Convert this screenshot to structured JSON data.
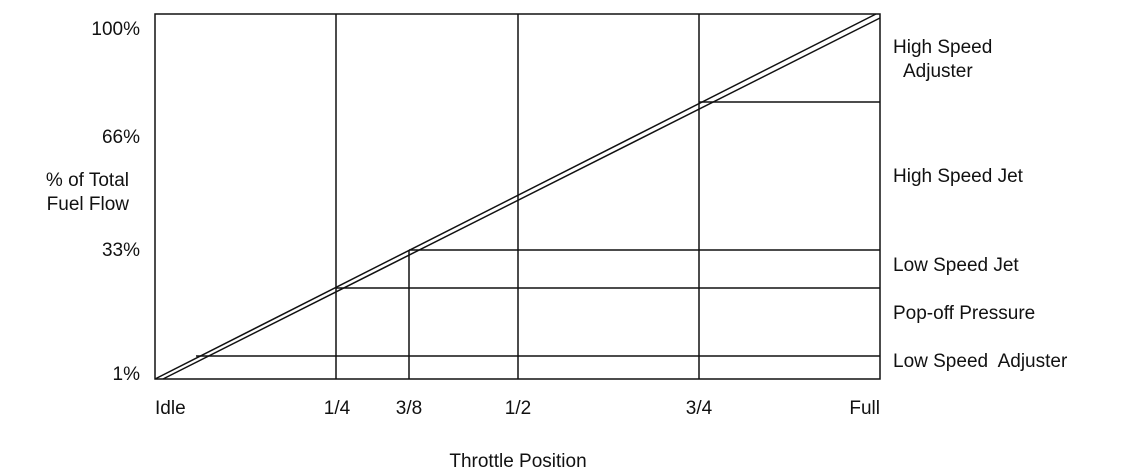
{
  "y_axis": {
    "ticks": [
      "100%",
      "66%",
      "33%",
      "1%"
    ],
    "label": [
      "% of Total",
      "Fuel Flow"
    ]
  },
  "x_axis": {
    "ticks": [
      "Idle",
      "1/4",
      "3/8",
      "1/2",
      "3/4",
      "Full"
    ],
    "label": "Throttle Position"
  },
  "regions": [
    [
      "High Speed",
      "Adjuster"
    ],
    [
      "High Speed Jet"
    ],
    [
      "Low Speed Jet"
    ],
    [
      "Pop-off Pressure"
    ],
    [
      "Low Speed  Adjuster"
    ]
  ]
}
